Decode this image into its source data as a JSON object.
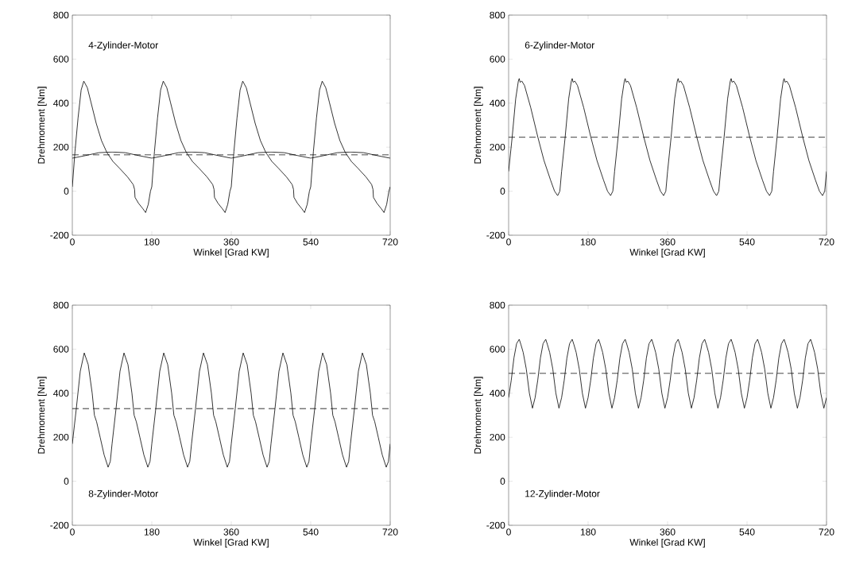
{
  "chart_data": [
    {
      "type": "line",
      "xlabel": "Winkel [Grad KW]",
      "ylabel": "Drehmoment [Nm]",
      "xlim": [
        0,
        720
      ],
      "xticks": [
        0,
        180,
        360,
        540,
        720
      ],
      "ylim": [
        -200,
        800
      ],
      "yticks": [
        -200,
        0,
        200,
        400,
        600,
        800
      ],
      "annotations": [
        "4-Zylinder-Motor"
      ],
      "ref_lines": [
        {
          "axis": "y",
          "value": 165,
          "color": "#000000",
          "line_style": "dashed"
        }
      ],
      "series": [
        {
          "color": "#000000",
          "x": [
            0,
            6,
            13,
            20,
            26,
            34,
            42,
            54,
            66,
            78,
            92,
            107,
            125,
            138,
            141,
            142,
            150,
            160,
            166,
            172,
            177,
            180,
            186,
            193,
            200,
            206,
            214,
            222,
            234,
            246,
            258,
            272,
            287,
            305,
            318,
            321,
            322,
            330,
            340,
            346,
            352,
            357,
            360,
            366,
            373,
            380,
            386,
            394,
            402,
            414,
            426,
            438,
            452,
            467,
            485,
            498,
            501,
            502,
            510,
            520,
            526,
            532,
            537,
            540,
            546,
            553,
            560,
            566,
            574,
            582,
            594,
            606,
            618,
            632,
            647,
            665,
            678,
            681,
            682,
            690,
            700,
            706,
            712,
            717,
            720
          ],
          "values": [
            20,
            180,
            333,
            460,
            500,
            470,
            406,
            309,
            230,
            177,
            135,
            104,
            65,
            30,
            8,
            -28,
            -55,
            -80,
            -97,
            -60,
            0,
            20,
            180,
            333,
            460,
            500,
            470,
            406,
            309,
            230,
            177,
            135,
            104,
            65,
            30,
            8,
            -28,
            -55,
            -80,
            -97,
            -60,
            0,
            20,
            180,
            333,
            460,
            500,
            470,
            406,
            309,
            230,
            177,
            135,
            104,
            65,
            30,
            8,
            -28,
            -55,
            -80,
            -97,
            -60,
            0,
            20,
            180,
            333,
            460,
            500,
            470,
            406,
            309,
            230,
            177,
            135,
            104,
            65,
            30,
            8,
            -28,
            -55,
            -80,
            -97,
            -60,
            0,
            20
          ]
        },
        {
          "color": "#000000",
          "x": [
            0,
            30,
            60,
            90,
            120,
            150,
            180,
            210,
            240,
            270,
            300,
            330,
            360,
            390,
            420,
            450,
            480,
            510,
            540,
            570,
            600,
            630,
            660,
            690,
            720
          ],
          "values": [
            150,
            162,
            175,
            178,
            175,
            162,
            150,
            162,
            175,
            178,
            175,
            162,
            150,
            162,
            175,
            178,
            175,
            162,
            150,
            162,
            175,
            178,
            175,
            162,
            150
          ]
        }
      ]
    },
    {
      "type": "line",
      "xlabel": "Winkel [Grad KW]",
      "ylabel": "Drehmoment [Nm]",
      "xlim": [
        0,
        720
      ],
      "xticks": [
        0,
        180,
        360,
        540,
        720
      ],
      "ylim": [
        -200,
        800
      ],
      "yticks": [
        -200,
        0,
        200,
        400,
        600,
        800
      ],
      "annotations": [
        "6-Zylinder-Motor"
      ],
      "ref_lines": [
        {
          "axis": "y",
          "value": 245,
          "color": "#000000",
          "line_style": "dashed"
        }
      ],
      "series": [
        {
          "color": "#000000",
          "x": [
            0,
            8,
            16,
            22,
            24,
            26,
            30,
            36,
            50,
            66,
            80,
            95,
            104,
            111,
            116,
            120,
            128,
            136,
            142,
            144,
            146,
            150,
            156,
            170,
            186,
            200,
            215,
            224,
            231,
            236,
            240,
            248,
            256,
            262,
            264,
            266,
            270,
            276,
            290,
            306,
            320,
            335,
            344,
            351,
            356,
            360,
            368,
            376,
            382,
            384,
            386,
            390,
            396,
            410,
            426,
            440,
            455,
            464,
            471,
            476,
            480,
            488,
            496,
            502,
            504,
            506,
            510,
            516,
            530,
            546,
            560,
            575,
            584,
            591,
            596,
            600,
            608,
            616,
            622,
            624,
            626,
            630,
            636,
            650,
            666,
            680,
            695,
            704,
            711,
            716,
            720
          ],
          "values": [
            90,
            245,
            420,
            500,
            512,
            495,
            500,
            480,
            380,
            247,
            140,
            50,
            0,
            -20,
            0,
            90,
            245,
            420,
            500,
            512,
            495,
            500,
            480,
            380,
            247,
            140,
            50,
            0,
            -20,
            0,
            90,
            245,
            420,
            500,
            512,
            495,
            500,
            480,
            380,
            247,
            140,
            50,
            0,
            -20,
            0,
            90,
            245,
            420,
            500,
            512,
            495,
            500,
            480,
            380,
            247,
            140,
            50,
            0,
            -20,
            0,
            90,
            245,
            420,
            500,
            512,
            495,
            500,
            480,
            380,
            247,
            140,
            50,
            0,
            -20,
            0,
            90,
            245,
            420,
            500,
            512,
            495,
            500,
            480,
            380,
            247,
            140,
            50,
            0,
            -20,
            0,
            90
          ]
        }
      ]
    },
    {
      "type": "line",
      "xlabel": "Winkel [Grad KW]",
      "ylabel": "Drehmoment [Nm]",
      "xlim": [
        0,
        720
      ],
      "xticks": [
        0,
        180,
        360,
        540,
        720
      ],
      "ylim": [
        -200,
        800
      ],
      "yticks": [
        -200,
        0,
        200,
        400,
        600,
        800
      ],
      "annotations": [
        "8-Zylinder-Motor"
      ],
      "ref_lines": [
        {
          "axis": "y",
          "value": 330,
          "color": "#000000",
          "line_style": "dashed"
        }
      ],
      "series": [
        {
          "color": "#000000",
          "x": [
            0,
            9,
            18,
            27,
            36,
            45,
            50,
            55,
            63,
            72,
            81,
            86,
            90,
            99,
            108,
            117,
            126,
            135,
            140,
            145,
            153,
            162,
            171,
            176,
            180,
            189,
            198,
            207,
            216,
            225,
            230,
            235,
            243,
            252,
            261,
            266,
            270,
            279,
            288,
            297,
            306,
            315,
            320,
            325,
            333,
            342,
            351,
            356,
            360,
            369,
            378,
            387,
            396,
            405,
            410,
            415,
            423,
            432,
            441,
            446,
            450,
            459,
            468,
            477,
            486,
            495,
            500,
            505,
            513,
            522,
            531,
            536,
            540,
            549,
            558,
            567,
            576,
            585,
            590,
            595,
            603,
            612,
            621,
            626,
            630,
            639,
            648,
            657,
            666,
            675,
            680,
            685,
            693,
            702,
            711,
            716,
            720
          ],
          "values": [
            170,
            330,
            500,
            583,
            530,
            400,
            300,
            270,
            200,
            120,
            64,
            90,
            170,
            330,
            500,
            583,
            530,
            400,
            300,
            270,
            200,
            120,
            64,
            90,
            170,
            330,
            500,
            583,
            530,
            400,
            300,
            270,
            200,
            120,
            64,
            90,
            170,
            330,
            500,
            583,
            530,
            400,
            300,
            270,
            200,
            120,
            64,
            90,
            170,
            330,
            500,
            583,
            530,
            400,
            300,
            270,
            200,
            120,
            64,
            90,
            170,
            330,
            500,
            583,
            530,
            400,
            300,
            270,
            200,
            120,
            64,
            90,
            170,
            330,
            500,
            583,
            530,
            400,
            300,
            270,
            200,
            120,
            64,
            90,
            170,
            330,
            500,
            583,
            530,
            400,
            300,
            270,
            200,
            120,
            64,
            90,
            170
          ]
        }
      ]
    },
    {
      "type": "line",
      "xlabel": "Winkel [Grad KW]",
      "ylabel": "Drehmoment [Nm]",
      "xlim": [
        0,
        720
      ],
      "xticks": [
        0,
        180,
        360,
        540,
        720
      ],
      "ylim": [
        -200,
        800
      ],
      "yticks": [
        -200,
        0,
        200,
        400,
        600,
        800
      ],
      "annotations": [
        "12-Zylinder-Motor"
      ],
      "ref_lines": [
        {
          "axis": "y",
          "value": 490,
          "color": "#000000",
          "line_style": "dashed"
        }
      ],
      "series": [
        {
          "color": "#000000",
          "x": [
            0,
            6,
            12,
            18,
            24,
            28,
            33,
            40,
            47,
            54,
            60,
            66,
            72,
            78,
            84,
            88,
            93,
            100,
            107,
            114,
            120,
            126,
            132,
            138,
            144,
            148,
            153,
            160,
            167,
            174,
            180,
            186,
            192,
            198,
            204,
            208,
            213,
            220,
            227,
            234,
            240,
            246,
            252,
            258,
            264,
            268,
            273,
            280,
            287,
            294,
            300,
            306,
            312,
            318,
            324,
            328,
            333,
            340,
            347,
            354,
            360,
            366,
            372,
            378,
            384,
            388,
            393,
            400,
            407,
            414,
            420,
            426,
            432,
            438,
            444,
            448,
            453,
            460,
            467,
            474,
            480,
            486,
            492,
            498,
            504,
            508,
            513,
            520,
            527,
            534,
            540,
            546,
            552,
            558,
            564,
            568,
            573,
            580,
            587,
            594,
            600,
            606,
            612,
            618,
            624,
            628,
            633,
            640,
            647,
            654,
            660,
            666,
            672,
            678,
            684,
            688,
            693,
            700,
            707,
            714,
            720
          ],
          "values": [
            380,
            460,
            560,
            625,
            645,
            620,
            585,
            510,
            400,
            332,
            380,
            460,
            560,
            625,
            645,
            620,
            585,
            510,
            400,
            332,
            380,
            460,
            560,
            625,
            645,
            620,
            585,
            510,
            400,
            332,
            380,
            460,
            560,
            625,
            645,
            620,
            585,
            510,
            400,
            332,
            380,
            460,
            560,
            625,
            645,
            620,
            585,
            510,
            400,
            332,
            380,
            460,
            560,
            625,
            645,
            620,
            585,
            510,
            400,
            332,
            380,
            460,
            560,
            625,
            645,
            620,
            585,
            510,
            400,
            332,
            380,
            460,
            560,
            625,
            645,
            620,
            585,
            510,
            400,
            332,
            380,
            460,
            560,
            625,
            645,
            620,
            585,
            510,
            400,
            332,
            380,
            460,
            560,
            625,
            645,
            620,
            585,
            510,
            400,
            332,
            380,
            460,
            560,
            625,
            645,
            620,
            585,
            510,
            400,
            332,
            380,
            460,
            560,
            625,
            645,
            620,
            585,
            510,
            400,
            332,
            380
          ]
        }
      ]
    }
  ]
}
